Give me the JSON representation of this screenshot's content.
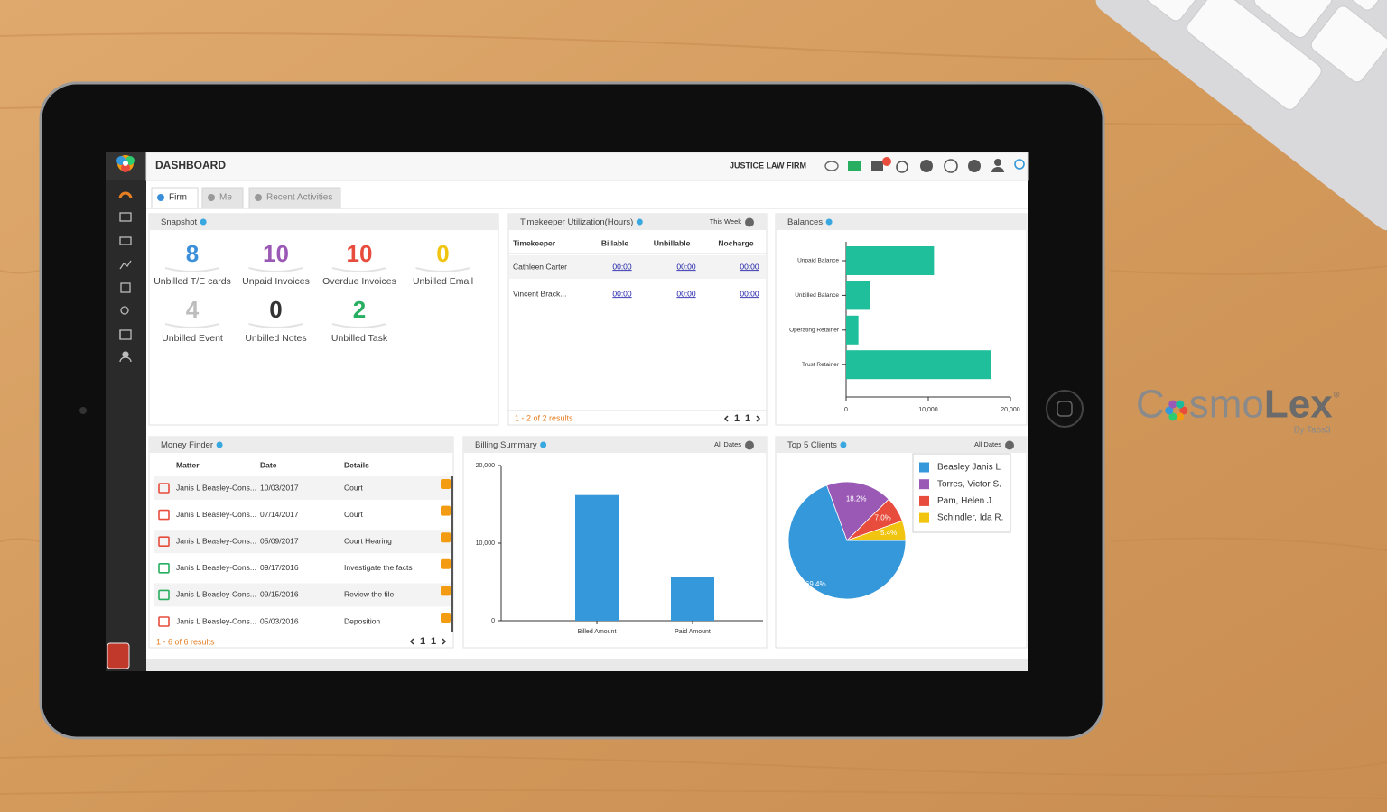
{
  "header": {
    "title": "DASHBOARD",
    "firm": "JUSTICE LAW FIRM"
  },
  "tabs": [
    "Firm",
    "Me",
    "Recent Activities"
  ],
  "snapshot": {
    "title": "Snapshot",
    "items": [
      {
        "value": 8,
        "label": "Unbilled T/E cards",
        "color": "#3b8fd9"
      },
      {
        "value": 10,
        "label": "Unpaid Invoices",
        "color": "#9b59b6"
      },
      {
        "value": 10,
        "label": "Overdue Invoices",
        "color": "#e74c3c"
      },
      {
        "value": 0,
        "label": "Unbilled Email",
        "color": "#f1c40f"
      },
      {
        "value": 4,
        "label": "Unbilled Event",
        "color": "#bdbdbd"
      },
      {
        "value": 0,
        "label": "Unbilled Notes",
        "color": "#333333"
      },
      {
        "value": 2,
        "label": "Unbilled Task",
        "color": "#27ae60"
      }
    ]
  },
  "timekeeper": {
    "title": "Timekeeper Utilization(Hours)",
    "filter": "This Week",
    "columns": [
      "Timekeeper",
      "Billable",
      "Unbillable",
      "Nocharge"
    ],
    "rows": [
      [
        "Cathleen Carter",
        "00:00",
        "00:00",
        "00:00"
      ],
      [
        "Vincent Brack...",
        "00:00",
        "00:00",
        "00:00"
      ]
    ],
    "footer": "1 - 2 of 2 results",
    "pager": [
      "1",
      "1"
    ]
  },
  "money_finder": {
    "title": "Money Finder",
    "columns": [
      "Matter",
      "Date",
      "Details"
    ],
    "rows": [
      {
        "matter": "Janis L Beasley-Cons...",
        "date": "10/03/2017",
        "details": "Court",
        "icon": "event"
      },
      {
        "matter": "Janis L Beasley-Cons...",
        "date": "07/14/2017",
        "details": "Court",
        "icon": "event"
      },
      {
        "matter": "Janis L Beasley-Cons...",
        "date": "05/09/2017",
        "details": "Court Hearing",
        "icon": "event"
      },
      {
        "matter": "Janis L Beasley-Cons...",
        "date": "09/17/2016",
        "details": "Investigate the facts",
        "icon": "task"
      },
      {
        "matter": "Janis L Beasley-Cons...",
        "date": "09/15/2016",
        "details": "Review the file",
        "icon": "task"
      },
      {
        "matter": "Janis L Beasley-Cons...",
        "date": "05/03/2016",
        "details": "Deposition",
        "icon": "event"
      }
    ],
    "footer": "1 - 6 of 6 results",
    "pager": [
      "1",
      "1"
    ]
  },
  "chart_data": [
    {
      "type": "bar",
      "orientation": "horizontal",
      "title": "Balances",
      "categories": [
        "Unpaid Balance",
        "Unbilled Balance",
        "Operating Retainer",
        "Trust Retainer"
      ],
      "values": [
        10700,
        2900,
        1500,
        17600
      ],
      "color": "#1fbf9b",
      "xlim": [
        0,
        20000
      ],
      "xticks": [
        0,
        {
          "value": 10000,
          "label": "10,000"
        },
        {
          "value": 20000,
          "label": "20,000"
        }
      ]
    },
    {
      "type": "bar",
      "orientation": "vertical",
      "title": "Billing Summary",
      "filter": "All Dates",
      "categories": [
        "Billed Amount",
        "Paid Amount"
      ],
      "values": [
        16200,
        5600
      ],
      "color": "#3498db",
      "ylim": [
        0,
        20000
      ],
      "yticks": [
        0,
        {
          "value": 10000,
          "label": "10,000"
        },
        {
          "value": 20000,
          "label": "20,000"
        }
      ]
    },
    {
      "type": "pie",
      "title": "Top 5 Clients",
      "filter": "All Dates",
      "categories": [
        "Beasley Janis L",
        "Torres, Victor S.",
        "Pam, Helen J.",
        "Schindler, Ida R."
      ],
      "values": [
        69.4,
        18.2,
        7.0,
        5.4
      ],
      "value_labels": [
        "69.4%",
        "18.2%",
        "7.0%",
        "5.4%"
      ],
      "colors": [
        "#3498db",
        "#9b59b6",
        "#e74c3c",
        "#f1c40f"
      ]
    }
  ],
  "brand": {
    "name_parts": [
      "C",
      "smo",
      "Lex"
    ],
    "mark": "®",
    "tagline": "By Tabs3"
  }
}
